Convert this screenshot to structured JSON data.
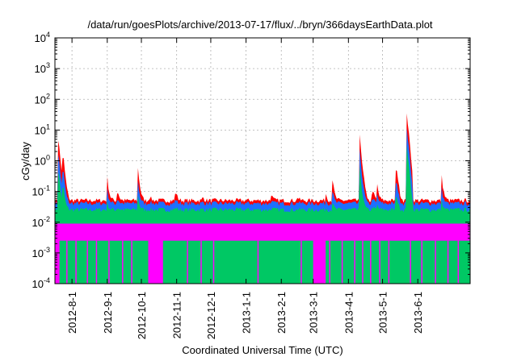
{
  "chart_data": {
    "type": "area",
    "title": "/data/run/goesPlots/archive/2013-07-17/flux/../bryn/366daysEarthData.plot",
    "xlabel": "Coordinated Universal Time (UTC)",
    "ylabel": "cGy/day",
    "y_scale": "log",
    "ylim": [
      0.0001,
      10000
    ],
    "xlim": [
      "2012-07-17",
      "2013-07-17"
    ],
    "y_ticks": [
      {
        "value": 0.0001,
        "base": "10",
        "exp": "-4"
      },
      {
        "value": 0.001,
        "base": "10",
        "exp": "-3"
      },
      {
        "value": 0.01,
        "base": "10",
        "exp": "-2"
      },
      {
        "value": 0.1,
        "base": "10",
        "exp": "-1"
      },
      {
        "value": 1,
        "base": "10",
        "exp": "0"
      },
      {
        "value": 10,
        "base": "10",
        "exp": "1"
      },
      {
        "value": 100,
        "base": "10",
        "exp": "2"
      },
      {
        "value": 1000,
        "base": "10",
        "exp": "3"
      },
      {
        "value": 10000,
        "base": "10",
        "exp": "4"
      }
    ],
    "x_ticks": [
      {
        "date": "2012-08-01",
        "label": "2012-8-1"
      },
      {
        "date": "2012-09-01",
        "label": "2012-9-1"
      },
      {
        "date": "2012-10-01",
        "label": "2012-10-1"
      },
      {
        "date": "2012-11-01",
        "label": "2012-11-1"
      },
      {
        "date": "2012-12-01",
        "label": "2012-12-1"
      },
      {
        "date": "2013-01-01",
        "label": "2013-1-1"
      },
      {
        "date": "2013-02-01",
        "label": "2013-2-1"
      },
      {
        "date": "2013-03-01",
        "label": "2013-3-1"
      },
      {
        "date": "2013-04-01",
        "label": "2013-4-1"
      },
      {
        "date": "2013-05-01",
        "label": "2013-5-1"
      },
      {
        "date": "2013-06-01",
        "label": "2013-6-1"
      }
    ],
    "grid": true,
    "legend": "none",
    "series_colors": [
      "#ff0000",
      "#1e6fff",
      "#00c864",
      "#ff00ff"
    ],
    "baseline": {
      "red": 0.05,
      "blue": 0.04,
      "green": 0.025,
      "magenta": 0.009,
      "magenta_floor": 0.0025
    },
    "events": [
      {
        "date": "2012-07-20",
        "peak": 5.5
      },
      {
        "date": "2012-07-24",
        "peak": 2.0
      },
      {
        "date": "2012-09-01",
        "peak": 0.28
      },
      {
        "date": "2012-09-10",
        "peak": 0.12
      },
      {
        "date": "2012-09-28",
        "peak": 0.55
      },
      {
        "date": "2012-10-08",
        "peak": 0.08
      },
      {
        "date": "2012-10-31",
        "peak": 0.12
      },
      {
        "date": "2012-11-24",
        "peak": 0.07
      },
      {
        "date": "2013-01-23",
        "peak": 0.09
      },
      {
        "date": "2013-02-15",
        "peak": 0.07
      },
      {
        "date": "2013-03-12",
        "peak": 0.09
      },
      {
        "date": "2013-03-18",
        "peak": 0.25
      },
      {
        "date": "2013-04-11",
        "peak": 6.0
      },
      {
        "date": "2013-04-22",
        "peak": 0.15
      },
      {
        "date": "2013-04-26",
        "peak": 0.2
      },
      {
        "date": "2013-05-13",
        "peak": 0.9
      },
      {
        "date": "2013-05-22",
        "peak": 50.0
      },
      {
        "date": "2013-06-22",
        "peak": 0.3
      }
    ],
    "magenta_dropouts": [
      [
        "2012-07-17",
        "2012-07-21"
      ],
      [
        "2012-07-27",
        "2012-07-28"
      ],
      [
        "2012-08-04",
        "2012-08-05"
      ],
      [
        "2012-08-14",
        "2012-08-15"
      ],
      [
        "2012-08-22",
        "2012-08-23"
      ],
      [
        "2012-09-02",
        "2012-09-03"
      ],
      [
        "2012-09-14",
        "2012-09-15"
      ],
      [
        "2012-09-22",
        "2012-09-23"
      ],
      [
        "2012-10-07",
        "2012-10-20"
      ],
      [
        "2012-11-10",
        "2012-11-11"
      ],
      [
        "2012-11-22",
        "2012-11-23"
      ],
      [
        "2012-12-03",
        "2012-12-04"
      ],
      [
        "2013-01-11",
        "2013-01-12"
      ],
      [
        "2013-02-18",
        "2013-02-19"
      ],
      [
        "2013-03-01",
        "2013-03-12"
      ],
      [
        "2013-03-15",
        "2013-03-16"
      ],
      [
        "2013-03-26",
        "2013-03-27"
      ],
      [
        "2013-04-06",
        "2013-04-07"
      ],
      [
        "2013-04-13",
        "2013-04-14"
      ],
      [
        "2013-04-20",
        "2013-04-21"
      ],
      [
        "2013-04-28",
        "2013-04-29"
      ],
      [
        "2013-05-06",
        "2013-05-07"
      ],
      [
        "2013-05-25",
        "2013-05-26"
      ],
      [
        "2013-06-04",
        "2013-06-05"
      ],
      [
        "2013-06-16",
        "2013-06-17"
      ],
      [
        "2013-06-27",
        "2013-06-28"
      ],
      [
        "2013-07-06",
        "2013-07-07"
      ]
    ]
  }
}
